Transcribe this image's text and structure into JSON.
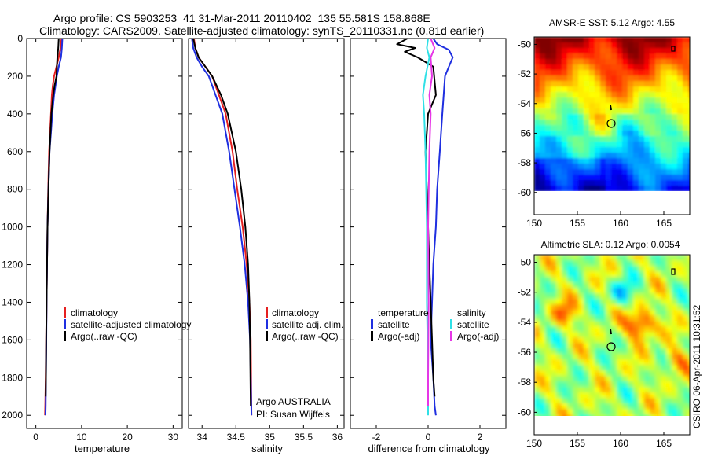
{
  "header": {
    "line1": "Argo profile: CS 5903253_41 31-Mar-2011 20110402_135 55.581S 158.868E",
    "line2": "Climatology: CARS2009. Satellite-adjusted climatology: synTS_20110331.nc (0.81d earlier)"
  },
  "side_label": "CSIRO 06-Apr-2011 10:31:52",
  "colors": {
    "climatology": "#e52020",
    "satellite": "#1f2fe0",
    "argo": "#000000",
    "satellite_diff": "#2fe0e6",
    "argo_diff": "#e636e6"
  },
  "chart_data": [
    {
      "type": "line",
      "xlabel": "temperature",
      "ylabel": "",
      "xlim": [
        -2,
        32
      ],
      "ylim": [
        2070,
        0
      ],
      "xticks": [
        0,
        10,
        20,
        30
      ],
      "yticks": [
        0,
        200,
        400,
        600,
        800,
        1000,
        1200,
        1400,
        1600,
        1800,
        2000
      ],
      "legend": [
        "climatology",
        "satellite-adjusted climatology",
        "Argo(..raw -QC)"
      ],
      "series": [
        {
          "name": "climatology",
          "color": "#e52020",
          "x": [
            5.6,
            5.4,
            5.0,
            4.5,
            4.0,
            3.7,
            3.5,
            3.3,
            3.1,
            2.9,
            2.7,
            2.55,
            2.45,
            2.35,
            2.25,
            2.15,
            2.05,
            2.0
          ],
          "y": [
            0,
            50,
            100,
            150,
            200,
            250,
            300,
            400,
            500,
            600,
            800,
            1000,
            1200,
            1400,
            1600,
            1800,
            1950,
            2000
          ]
        },
        {
          "name": "satellite-adjusted climatology",
          "color": "#1f2fe0",
          "x": [
            5.8,
            5.7,
            5.5,
            5.0,
            4.6,
            4.3,
            4.0,
            3.6,
            3.3,
            3.0,
            2.75,
            2.55,
            2.45,
            2.35,
            2.3,
            2.2,
            2.15,
            2.1
          ],
          "y": [
            0,
            50,
            100,
            150,
            200,
            250,
            300,
            400,
            500,
            600,
            800,
            1000,
            1200,
            1400,
            1600,
            1800,
            1950,
            2000
          ]
        },
        {
          "name": "Argo(..raw -QC)",
          "color": "#000000",
          "x": [
            5.0,
            4.9,
            4.7,
            4.6,
            4.5,
            4.1,
            3.8,
            3.4,
            3.2,
            3.0,
            2.75,
            2.55,
            2.45,
            2.35,
            2.25,
            2.2,
            2.15
          ],
          "y": [
            0,
            50,
            100,
            150,
            200,
            250,
            300,
            400,
            500,
            600,
            800,
            1000,
            1200,
            1400,
            1600,
            1800,
            1900
          ]
        }
      ]
    },
    {
      "type": "line",
      "xlabel": "salinity",
      "ylabel": "",
      "xlim": [
        33.8,
        36.1
      ],
      "ylim": [
        2070,
        0
      ],
      "xticks": [
        34,
        34.5,
        35,
        35.5,
        36
      ],
      "legend": [
        "climatology",
        "satellite adj. clim.",
        "Argo(..raw -QC)"
      ],
      "annotation": [
        "Argo AUSTRALIA",
        "PI: Susan Wijffels"
      ],
      "series": [
        {
          "name": "climatology",
          "color": "#e52020",
          "x": [
            33.88,
            33.9,
            33.95,
            34.05,
            34.15,
            34.25,
            34.35,
            34.45,
            34.52,
            34.6,
            34.66,
            34.7,
            34.72,
            34.73
          ],
          "y": [
            0,
            50,
            100,
            150,
            200,
            300,
            400,
            600,
            800,
            1000,
            1200,
            1400,
            1600,
            2000
          ]
        },
        {
          "name": "satellite adj. clim.",
          "color": "#1f2fe0",
          "x": [
            33.85,
            33.87,
            33.92,
            34.0,
            34.1,
            34.2,
            34.3,
            34.4,
            34.48,
            34.56,
            34.63,
            34.68,
            34.71,
            34.73
          ],
          "y": [
            0,
            50,
            100,
            150,
            200,
            300,
            400,
            600,
            800,
            1000,
            1200,
            1400,
            1600,
            2000
          ]
        },
        {
          "name": "Argo(..raw -QC)",
          "color": "#000000",
          "x": [
            33.87,
            33.9,
            33.95,
            34.05,
            34.15,
            34.28,
            34.38,
            34.5,
            34.58,
            34.64,
            34.68,
            34.7,
            34.71,
            34.72
          ],
          "y": [
            0,
            50,
            100,
            150,
            200,
            300,
            400,
            600,
            800,
            1000,
            1200,
            1400,
            1600,
            1950
          ]
        }
      ]
    },
    {
      "type": "line",
      "xlabel": "difference from climatology",
      "ylabel": "",
      "xlim": [
        -3,
        3
      ],
      "ylim": [
        2070,
        0
      ],
      "xticks": [
        -2,
        0,
        2
      ],
      "legend_titles": [
        "temperature",
        "salinity"
      ],
      "legend": [
        "satellite",
        "Argo(-adj)",
        "satellite",
        "Argo(-adj)"
      ],
      "series": [
        {
          "name": "temperature satellite",
          "color": "#1f2fe0",
          "x": [
            0.2,
            0.35,
            0.8,
            0.95,
            0.8,
            0.65,
            0.6,
            0.55,
            0.45,
            0.35,
            0.3,
            0.2,
            0.15,
            0.1,
            0.2,
            0.25,
            0.3
          ],
          "y": [
            0,
            30,
            60,
            100,
            150,
            200,
            300,
            400,
            600,
            800,
            1000,
            1200,
            1400,
            1600,
            1800,
            1950,
            2000
          ]
        },
        {
          "name": "temperature Argo(-adj)",
          "color": "#000000",
          "x": [
            -0.8,
            -1.2,
            -0.5,
            -0.9,
            -0.4,
            0.2,
            0.3,
            0.0,
            -0.1,
            -0.05,
            0.0,
            0.05,
            0.1,
            0.15,
            0.2,
            0.25
          ],
          "y": [
            0,
            30,
            50,
            70,
            100,
            150,
            300,
            400,
            600,
            800,
            1000,
            1200,
            1400,
            1600,
            1800,
            1900
          ]
        },
        {
          "name": "salinity satellite",
          "color": "#2fe0e6",
          "x": [
            0.0,
            -0.05,
            0.05,
            -0.1,
            -0.2,
            -0.15,
            -0.1,
            -0.05,
            -0.05,
            0.0,
            0.0
          ],
          "y": [
            0,
            50,
            100,
            200,
            300,
            400,
            600,
            1000,
            1400,
            1800,
            2000
          ]
        },
        {
          "name": "salinity Argo(-adj)",
          "color": "#e636e6",
          "x": [
            0.1,
            0.25,
            0.1,
            0.15,
            0.05,
            0.1,
            0.05,
            0.0,
            0.02,
            0.0,
            0.0
          ],
          "y": [
            0,
            50,
            100,
            200,
            300,
            400,
            600,
            1000,
            1400,
            1800,
            1950
          ]
        }
      ]
    },
    {
      "type": "heatmap",
      "title": "AMSR-E SST: 5.12 Argo: 4.55",
      "xticks": [
        150,
        155,
        160,
        165
      ],
      "yticks": [
        -50,
        -52,
        -54,
        -56,
        -58,
        -60
      ],
      "xlim": [
        150,
        168
      ],
      "ylim": [
        -61.5,
        -49.5
      ]
    },
    {
      "type": "heatmap",
      "title": "Altimetric SLA: 0.12 Argo: 0.0054",
      "xticks": [
        150,
        155,
        160,
        165
      ],
      "yticks": [
        -50,
        -52,
        -54,
        -56,
        -58,
        -60
      ],
      "xlim": [
        150,
        168
      ],
      "ylim": [
        -61.5,
        -49.5
      ]
    }
  ]
}
